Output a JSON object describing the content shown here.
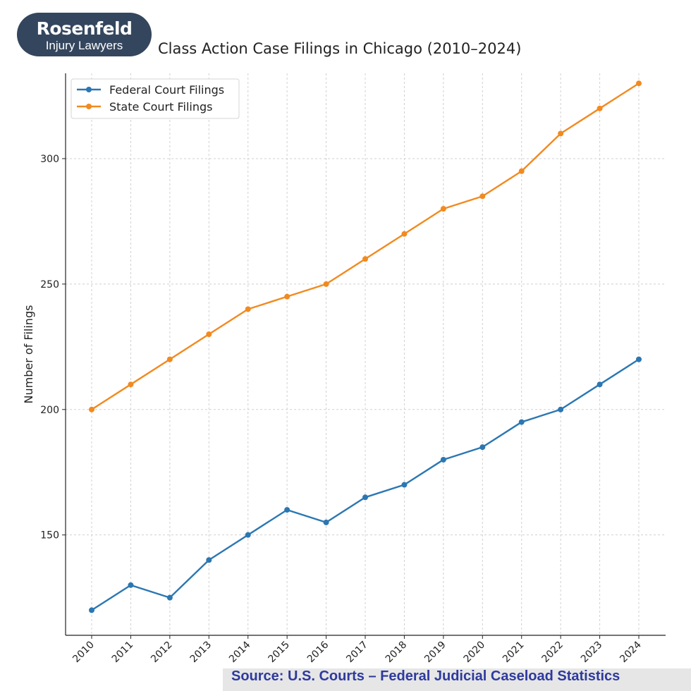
{
  "logo": {
    "name": "Rosenfeld",
    "subtitle": "Injury Lawyers"
  },
  "source": "Source:  U.S. Courts – Federal Judicial Caseload Statistics",
  "chart_data": {
    "type": "line",
    "title": "Class Action Case Filings in Chicago (2010–2024)",
    "xlabel": "",
    "ylabel": "Number of Filings",
    "x": [
      "2010",
      "2011",
      "2012",
      "2013",
      "2014",
      "2015",
      "2016",
      "2017",
      "2018",
      "2019",
      "2020",
      "2021",
      "2022",
      "2023",
      "2024"
    ],
    "ylim": [
      110,
      334
    ],
    "yticks": [
      150,
      200,
      250,
      300
    ],
    "grid": true,
    "legend": "top-left",
    "series": [
      {
        "name": "Federal Court Filings",
        "color": "#2b77b2",
        "values": [
          120,
          130,
          125,
          140,
          150,
          160,
          155,
          165,
          170,
          180,
          185,
          195,
          200,
          210,
          220
        ]
      },
      {
        "name": "State Court Filings",
        "color": "#f28a1f",
        "values": [
          200,
          210,
          220,
          230,
          240,
          245,
          250,
          260,
          270,
          280,
          285,
          295,
          310,
          320,
          330
        ]
      }
    ]
  }
}
